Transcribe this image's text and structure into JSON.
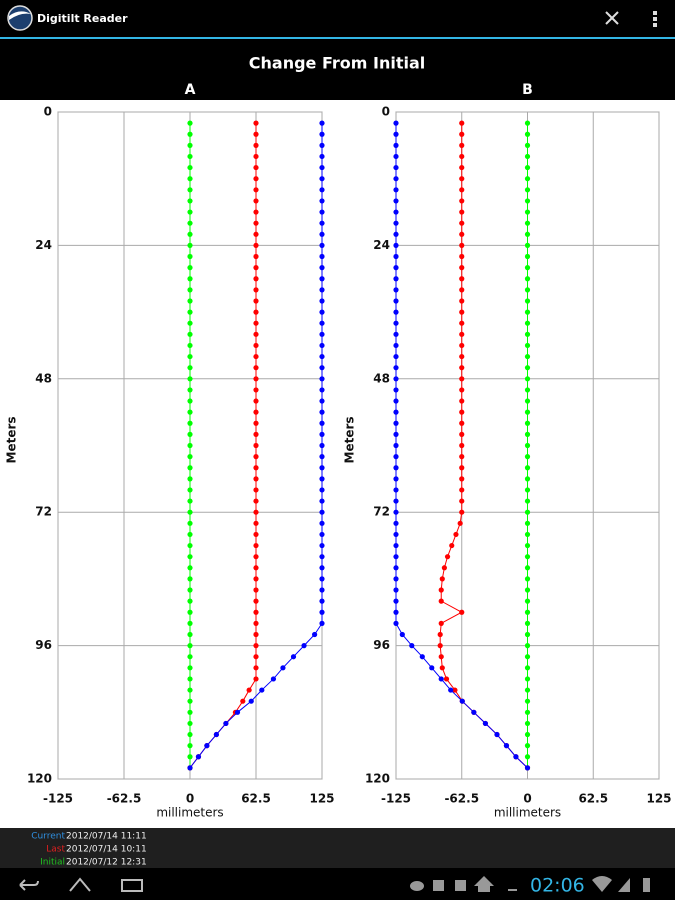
{
  "app": {
    "title": "Digitilt Reader"
  },
  "title": "Change From Initial",
  "legend": [
    {
      "name": "Current",
      "date": "2012/07/14 11:11",
      "color": "#2f8fe0"
    },
    {
      "name": "Last",
      "date": "2012/07/14 10:11",
      "color": "#e02020"
    },
    {
      "name": "Initial",
      "date": "2012/07/12 12:31",
      "color": "#20c020"
    }
  ],
  "status": {
    "time": "02:06"
  },
  "chart_data": [
    {
      "type": "line",
      "title": "A",
      "xlabel": "millimeters",
      "ylabel": "Meters",
      "xlim": [
        -125,
        125
      ],
      "xticks": [
        -125,
        -62.5,
        0,
        62.5,
        125
      ],
      "ylim": [
        0,
        120
      ],
      "yticks": [
        0,
        24,
        48,
        72,
        96,
        120
      ],
      "grid": true,
      "y": [
        2,
        4,
        6,
        8,
        10,
        12,
        14,
        16,
        18,
        20,
        22,
        24,
        26,
        28,
        30,
        32,
        34,
        36,
        38,
        40,
        42,
        44,
        46,
        48,
        50,
        52,
        54,
        56,
        58,
        60,
        62,
        64,
        66,
        68,
        70,
        72,
        74,
        76,
        78,
        80,
        82,
        84,
        86,
        88,
        90,
        92,
        94,
        96,
        98,
        100,
        102,
        104,
        106,
        108,
        110,
        112,
        114,
        116,
        118
      ],
      "series": [
        {
          "color": "#0000ff",
          "values": [
            125,
            125,
            125,
            125,
            125,
            125,
            125,
            125,
            125,
            125,
            125,
            125,
            125,
            125,
            125,
            125,
            125,
            125,
            125,
            125,
            125,
            125,
            125,
            125,
            125,
            125,
            125,
            125,
            125,
            125,
            125,
            125,
            125,
            125,
            125,
            125,
            125,
            125,
            125,
            125,
            125,
            125,
            125,
            125,
            125,
            125,
            118,
            108,
            98,
            88,
            79,
            68,
            58,
            45,
            34,
            25,
            16,
            8,
            0
          ]
        },
        {
          "color": "#ff0000",
          "values": [
            62.5,
            62.5,
            62.5,
            62.5,
            62.5,
            62.5,
            62.5,
            62.5,
            62.5,
            62.5,
            62.5,
            62.5,
            62.5,
            62.5,
            62.5,
            62.5,
            62.5,
            62.5,
            62.5,
            62.5,
            62.5,
            62.5,
            62.5,
            62.5,
            62.5,
            62.5,
            62.5,
            62.5,
            62.5,
            62.5,
            62.5,
            62.5,
            62.5,
            62.5,
            62.5,
            62.5,
            62.5,
            62.5,
            62.5,
            62.5,
            62.5,
            62.5,
            62.5,
            62.5,
            62.5,
            62.5,
            62.5,
            62.5,
            62.5,
            62.5,
            62.5,
            56,
            50,
            43,
            34,
            25,
            16,
            8,
            0
          ]
        },
        {
          "color": "#00ff00",
          "values": [
            0,
            0,
            0,
            0,
            0,
            0,
            0,
            0,
            0,
            0,
            0,
            0,
            0,
            0,
            0,
            0,
            0,
            0,
            0,
            0,
            0,
            0,
            0,
            0,
            0,
            0,
            0,
            0,
            0,
            0,
            0,
            0,
            0,
            0,
            0,
            0,
            0,
            0,
            0,
            0,
            0,
            0,
            0,
            0,
            0,
            0,
            0,
            0,
            0,
            0,
            0,
            0,
            0,
            0,
            0,
            0,
            0,
            0,
            0
          ]
        }
      ]
    },
    {
      "type": "line",
      "title": "B",
      "xlabel": "millimeters",
      "ylabel": "Meters",
      "xlim": [
        -125,
        125
      ],
      "xticks": [
        -125,
        -62.5,
        0,
        62.5,
        125
      ],
      "ylim": [
        0,
        120
      ],
      "yticks": [
        0,
        24,
        48,
        72,
        96,
        120
      ],
      "grid": true,
      "y": [
        2,
        4,
        6,
        8,
        10,
        12,
        14,
        16,
        18,
        20,
        22,
        24,
        26,
        28,
        30,
        32,
        34,
        36,
        38,
        40,
        42,
        44,
        46,
        48,
        50,
        52,
        54,
        56,
        58,
        60,
        62,
        64,
        66,
        68,
        70,
        72,
        74,
        76,
        78,
        80,
        82,
        84,
        86,
        88,
        90,
        92,
        94,
        96,
        98,
        100,
        102,
        104,
        106,
        108,
        110,
        112,
        114,
        116,
        118
      ],
      "series": [
        {
          "color": "#0000ff",
          "values": [
            -125,
            -125,
            -125,
            -125,
            -125,
            -125,
            -125,
            -125,
            -125,
            -125,
            -125,
            -125,
            -125,
            -125,
            -125,
            -125,
            -125,
            -125,
            -125,
            -125,
            -125,
            -125,
            -125,
            -125,
            -125,
            -125,
            -125,
            -125,
            -125,
            -125,
            -125,
            -125,
            -125,
            -125,
            -125,
            -125,
            -125,
            -125,
            -125,
            -125,
            -125,
            -125,
            -125,
            -125,
            -125,
            -125,
            -119,
            -110,
            -100,
            -91,
            -82,
            -73,
            -62,
            -51,
            -40,
            -29,
            -20,
            -11,
            0
          ]
        },
        {
          "color": "#ff0000",
          "values": [
            -62.5,
            -62.5,
            -62.5,
            -62.5,
            -62.5,
            -62.5,
            -62.5,
            -62.5,
            -62.5,
            -62.5,
            -62.5,
            -62.5,
            -62.5,
            -62.5,
            -62.5,
            -62.5,
            -62.5,
            -62.5,
            -62.5,
            -62.5,
            -62.5,
            -62.5,
            -62.5,
            -62.5,
            -62.5,
            -62.5,
            -62.5,
            -62.5,
            -62.5,
            -62.5,
            -62.5,
            -62.5,
            -62.5,
            -62.5,
            -62.5,
            -62.5,
            -64,
            -68,
            -72,
            -76,
            -79,
            -81,
            -82,
            -82,
            -62.5,
            -82,
            -83,
            -83,
            -82,
            -81,
            -77,
            -69,
            -62,
            -51,
            -40,
            -29,
            -20,
            -11,
            0
          ]
        },
        {
          "color": "#00ff00",
          "values": [
            0,
            0,
            0,
            0,
            0,
            0,
            0,
            0,
            0,
            0,
            0,
            0,
            0,
            0,
            0,
            0,
            0,
            0,
            0,
            0,
            0,
            0,
            0,
            0,
            0,
            0,
            0,
            0,
            0,
            0,
            0,
            0,
            0,
            0,
            0,
            0,
            0,
            0,
            0,
            0,
            0,
            0,
            0,
            0,
            0,
            0,
            0,
            0,
            0,
            0,
            0,
            0,
            0,
            0,
            0,
            0,
            0,
            0,
            0
          ]
        }
      ]
    }
  ]
}
